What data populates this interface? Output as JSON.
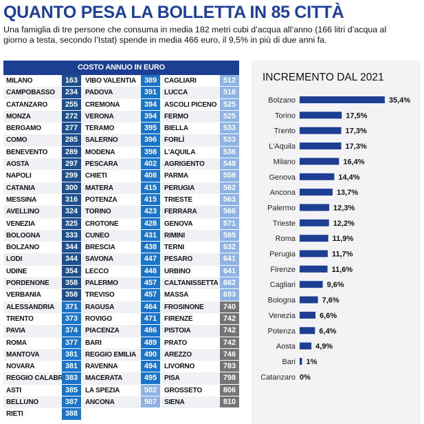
{
  "title": "QUANTO PESA LA BOLLETTA IN 85 CITTÀ",
  "subtitle": "Una famiglia di tre persone che consuma in media 182 metri cubi d’acqua all’anno (166 litri d’acqua al giorno a testa, secondo l’Istat) spende in media 466 euro, il 9,5% in più di due anni fa.",
  "colors": {
    "title": "#1e3f99",
    "tier1": "#1d4f8e",
    "tier2": "#1a74c9",
    "tier3": "#8db3e4",
    "tier4": "#747474",
    "bar": "#1c3f94"
  },
  "table": {
    "header": "COSTO ANNUO IN EURO",
    "columns": [
      [
        [
          "MILANO",
          163
        ],
        [
          "CAMPOBASSO",
          234
        ],
        [
          "CATANZARO",
          255
        ],
        [
          "MONZA",
          272
        ],
        [
          "BERGAMO",
          277
        ],
        [
          "COMO",
          285
        ],
        [
          "BENEVENTO",
          289
        ],
        [
          "AOSTA",
          297
        ],
        [
          "NAPOLI",
          299
        ],
        [
          "CATANIA",
          300
        ],
        [
          "MESSINA",
          316
        ],
        [
          "AVELLINO",
          324
        ],
        [
          "VENEZIA",
          325
        ],
        [
          "BOLOGNA",
          333
        ],
        [
          "BOLZANO",
          344
        ],
        [
          "LODI",
          344
        ],
        [
          "UDINE",
          354
        ],
        [
          "PORDENONE",
          358
        ],
        [
          "VERBANIA",
          358
        ],
        [
          "ALESSANDRIA",
          371
        ],
        [
          "TRENTO",
          373
        ],
        [
          "PAVIA",
          374
        ],
        [
          "ROMA",
          377
        ],
        [
          "MANTOVA",
          381
        ],
        [
          "NOVARA",
          381
        ],
        [
          "REGGIO CALABRIA",
          383
        ],
        [
          "ASTI",
          385
        ],
        [
          "BELLUNO",
          387
        ],
        [
          "RIETI",
          388
        ]
      ],
      [
        [
          "VIBO VALENTIA",
          389
        ],
        [
          "PADOVA",
          391
        ],
        [
          "CREMONA",
          394
        ],
        [
          "VERONA",
          394
        ],
        [
          "TERAMO",
          395
        ],
        [
          "SALERNO",
          396
        ],
        [
          "MODENA",
          398
        ],
        [
          "PESCARA",
          402
        ],
        [
          "CHIETI",
          408
        ],
        [
          "MATERA",
          415
        ],
        [
          "POTENZA",
          415
        ],
        [
          "TORINO",
          423
        ],
        [
          "CROTONE",
          428
        ],
        [
          "CUNEO",
          431
        ],
        [
          "BRESCIA",
          438
        ],
        [
          "SAVONA",
          447
        ],
        [
          "LECCO",
          448
        ],
        [
          "PALERMO",
          457
        ],
        [
          "TREVISO",
          457
        ],
        [
          "RAGUSA",
          464
        ],
        [
          "ROVIGO",
          471
        ],
        [
          "PIACENZA",
          486
        ],
        [
          "BARI",
          489
        ],
        [
          "REGGIO EMILIA",
          490
        ],
        [
          "RAVENNA",
          494
        ],
        [
          "MACERATA",
          495
        ],
        [
          "LA SPEZIA",
          502
        ],
        [
          "ANCONA",
          507
        ]
      ],
      [
        [
          "CAGLIARI",
          512
        ],
        [
          "LUCCA",
          516
        ],
        [
          "ASCOLI PICENO",
          525
        ],
        [
          "FERMO",
          525
        ],
        [
          "BIELLA",
          533
        ],
        [
          "FORLÌ",
          533
        ],
        [
          "L'AQUILA",
          536
        ],
        [
          "AGRIGENTO",
          548
        ],
        [
          "PARMA",
          558
        ],
        [
          "PERUGIA",
          562
        ],
        [
          "TRIESTE",
          563
        ],
        [
          "FERRARA",
          566
        ],
        [
          "GENOVA",
          571
        ],
        [
          "RIMINI",
          585
        ],
        [
          "TERNI",
          632
        ],
        [
          "PESARO",
          641
        ],
        [
          "URBINO",
          641
        ],
        [
          "CALTANISSETTA",
          662
        ],
        [
          "MASSA",
          693
        ],
        [
          "FROSINONE",
          740
        ],
        [
          "FIRENZE",
          742
        ],
        [
          "PISTOIA",
          742
        ],
        [
          "PRATO",
          742
        ],
        [
          "AREZZO",
          746
        ],
        [
          "LIVORNO",
          783
        ],
        [
          "PISA",
          798
        ],
        [
          "GROSSETO",
          806
        ],
        [
          "SIENA",
          810
        ]
      ]
    ]
  },
  "chart_data": {
    "type": "bar",
    "orientation": "horizontal",
    "title": "INCREMENTO DAL 2021",
    "categories": [
      "Bolzano",
      "Torino",
      "Trento",
      "L'Aquila",
      "Milano",
      "Genova",
      "Ancona",
      "Palermo",
      "Trieste",
      "Roma",
      "Perugia",
      "Firenze",
      "Cagliari",
      "Bologna",
      "Venezia",
      "Potenza",
      "Aosta",
      "Bari",
      "Catanzaro"
    ],
    "values": [
      35.4,
      17.5,
      17.3,
      17.3,
      16.4,
      14.4,
      13.7,
      12.3,
      12.2,
      11.9,
      11.7,
      11.6,
      9.6,
      7.6,
      6.6,
      6.4,
      4.9,
      1,
      0
    ],
    "labels": [
      "35,4%",
      "17,5%",
      "17,3%",
      "17,3%",
      "16,4%",
      "14,4%",
      "13,7%",
      "12,3%",
      "12,2%",
      "11,9%",
      "11,7%",
      "11,6%",
      "9,6%",
      "7,6%",
      "6,6%",
      "6,4%",
      "4,9%",
      "1%",
      "0%"
    ],
    "grid": false
  }
}
